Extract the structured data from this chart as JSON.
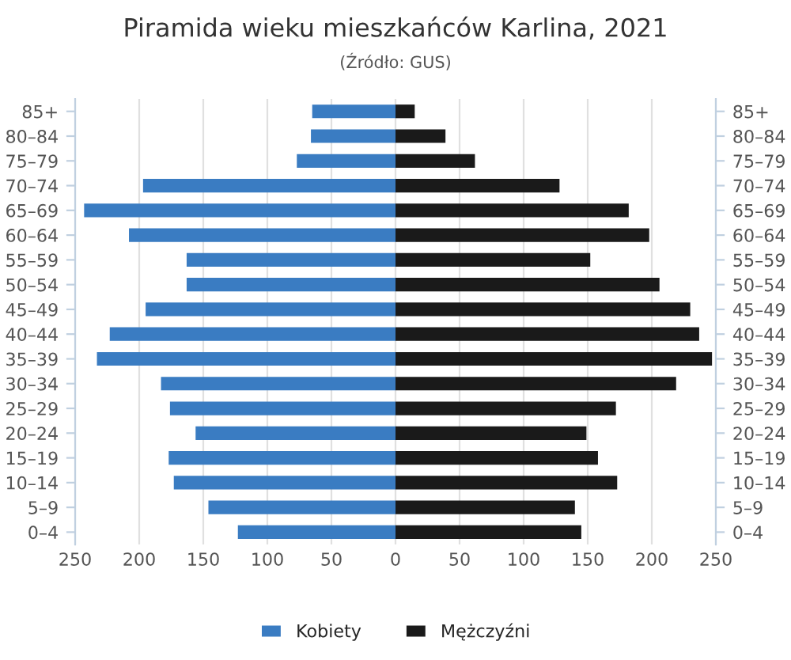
{
  "chart_data": {
    "type": "bar",
    "orientation": "horizontal",
    "stacked": true,
    "title": "Piramida wieku mieszkańców Karlina, 2021",
    "subtitle": "(Źródło: GUS)",
    "categories": [
      "85+",
      "80–84",
      "75–79",
      "70–74",
      "65–69",
      "60–64",
      "55–59",
      "50–54",
      "45–49",
      "40–44",
      "35–39",
      "30–34",
      "25–29",
      "20–24",
      "15–19",
      "10–14",
      "5–9",
      "0–4"
    ],
    "series": [
      {
        "name": "Kobiety",
        "color": "#3a7cc2",
        "values": [
          -65,
          -66,
          -77,
          -197,
          -243,
          -208,
          -163,
          -163,
          -195,
          -223,
          -233,
          -183,
          -176,
          -156,
          -177,
          -173,
          -146,
          -123
        ]
      },
      {
        "name": "Mężczyźni",
        "color": "#1a1a1a",
        "values": [
          15,
          39,
          62,
          128,
          182,
          198,
          152,
          206,
          230,
          237,
          247,
          219,
          172,
          149,
          158,
          173,
          140,
          145
        ]
      }
    ],
    "xlim": [
      -250,
      250
    ],
    "xticks": [
      {
        "value": -250,
        "label": "250"
      },
      {
        "value": -200,
        "label": "200"
      },
      {
        "value": -150,
        "label": "150"
      },
      {
        "value": -100,
        "label": "100"
      },
      {
        "value": -50,
        "label": "50"
      },
      0,
      50,
      100,
      150,
      200,
      250
    ],
    "grid": "x",
    "legend": "bottom"
  }
}
